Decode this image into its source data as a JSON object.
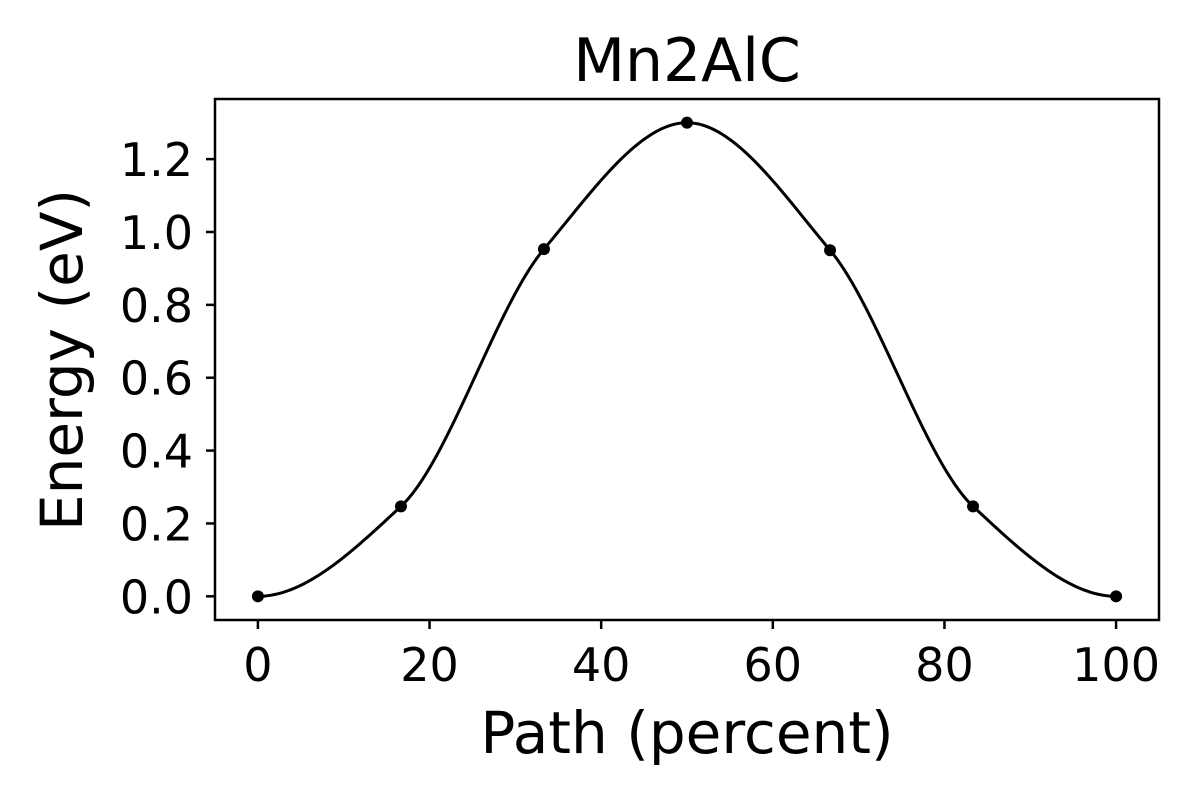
{
  "chart_data": {
    "type": "line",
    "title": "Mn2AlC",
    "xlabel": "Path (percent)",
    "ylabel": "Energy (eV)",
    "xlim": [
      -5,
      105
    ],
    "ylim": [
      -0.065,
      1.365
    ],
    "x_ticks": [
      "0",
      "20",
      "40",
      "60",
      "80",
      "100"
    ],
    "y_ticks": [
      "0.0",
      "0.2",
      "0.4",
      "0.6",
      "0.8",
      "1.0",
      "1.2"
    ],
    "grid": false,
    "legend": "none",
    "series": [
      {
        "color": "#000000",
        "marker": "circle",
        "points": [
          {
            "x": 0,
            "y": 0.0
          },
          {
            "x": 16.67,
            "y": 0.247
          },
          {
            "x": 33.33,
            "y": 0.953
          },
          {
            "x": 50,
            "y": 1.3
          },
          {
            "x": 66.67,
            "y": 0.95
          },
          {
            "x": 83.33,
            "y": 0.247
          },
          {
            "x": 100,
            "y": 0.0
          }
        ]
      }
    ]
  }
}
